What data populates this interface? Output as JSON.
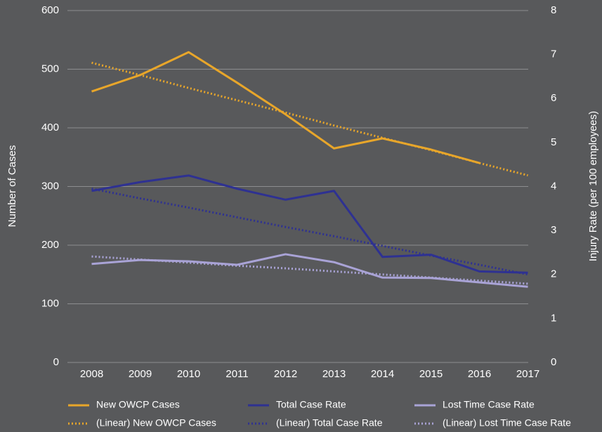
{
  "chart_data": {
    "type": "line",
    "categories": [
      "2008",
      "2009",
      "2010",
      "2011",
      "2012",
      "2013",
      "2014",
      "2015",
      "2016",
      "2017"
    ],
    "y_label": "Number of Cases",
    "y2_label": "Injury Rate (per 100 employees)",
    "ylim": [
      0,
      600
    ],
    "yticks": [
      0,
      100,
      200,
      300,
      400,
      500,
      600
    ],
    "y2lim": [
      0,
      8
    ],
    "y2ticks": [
      0,
      1,
      2,
      3,
      4,
      5,
      6,
      7,
      8
    ],
    "grid": true,
    "legend": "bottom",
    "series": [
      {
        "name": "New OWCP Cases",
        "color": "#e8a62a",
        "style": "solid",
        "values": [
          462,
          490,
          529,
          477,
          423,
          365,
          382,
          363,
          340,
          null
        ]
      },
      {
        "name": "Total Case Rate",
        "color": "#2e3192",
        "style": "solid",
        "axis": "y2",
        "values": [
          3.9,
          4.1,
          4.25,
          3.95,
          3.7,
          3.9,
          2.4,
          2.45,
          2.07,
          2.04
        ]
      },
      {
        "name": "Lost Time Case Rate",
        "color": "#a9a3d6",
        "style": "solid",
        "axis": "y2",
        "values": [
          2.24,
          2.33,
          2.3,
          2.22,
          2.46,
          2.28,
          1.93,
          1.92,
          1.82,
          1.72
        ]
      },
      {
        "name": "(Linear) New OWCP Cases",
        "color": "#e8a62a",
        "style": "dotted",
        "values": [
          511,
          490,
          468,
          447,
          426,
          404,
          383,
          362,
          340,
          319
        ]
      },
      {
        "name": "(Linear) Total Case Rate",
        "color": "#2e3192",
        "style": "dotted",
        "axis": "y2",
        "values": [
          3.95,
          3.73,
          3.52,
          3.3,
          3.08,
          2.87,
          2.65,
          2.43,
          2.22,
          2.0
        ]
      },
      {
        "name": "(Linear) Lost Time Case Rate",
        "color": "#a9a3d6",
        "style": "dotted",
        "axis": "y2",
        "values": [
          2.41,
          2.34,
          2.27,
          2.2,
          2.14,
          2.07,
          2.0,
          1.93,
          1.86,
          1.79
        ]
      }
    ]
  }
}
